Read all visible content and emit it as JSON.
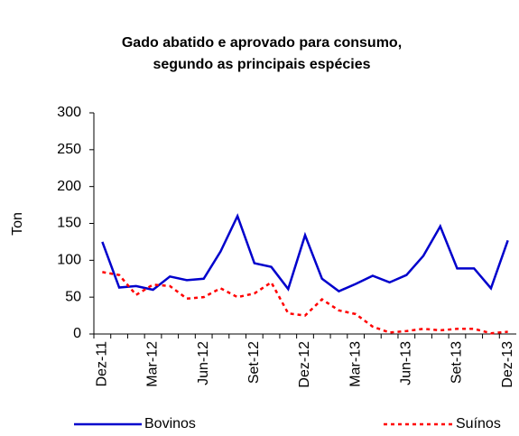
{
  "chart_data": {
    "type": "line",
    "title": "Gado abatido e aprovado para consumo,",
    "subtitle": "segundo as principais espécies",
    "y_label": "Ton",
    "categories": [
      "Dez-11",
      null,
      null,
      "Mar-12",
      null,
      null,
      "Jun-12",
      null,
      null,
      "Set-12",
      null,
      null,
      "Dez-12",
      null,
      null,
      "Mar-13",
      null,
      null,
      "Jun-13",
      null,
      null,
      "Set-13",
      null,
      null,
      "Dez-13"
    ],
    "series": [
      {
        "name": "Bovinos",
        "color": "#0000cc",
        "dash": false,
        "values": [
          125,
          63,
          65,
          60,
          78,
          73,
          75,
          112,
          160,
          96,
          91,
          61,
          134,
          75,
          58,
          68,
          79,
          70,
          80,
          106,
          146,
          89,
          89,
          62,
          127
        ]
      },
      {
        "name": "Suínos",
        "color": "#ff0000",
        "dash": true,
        "values": [
          84,
          80,
          53,
          67,
          65,
          48,
          50,
          62,
          50,
          55,
          70,
          28,
          25,
          47,
          32,
          27,
          10,
          2,
          4,
          7,
          5,
          7,
          7,
          1,
          3
        ]
      }
    ],
    "ylim": [
      0,
      300
    ],
    "yticks": [
      0,
      50,
      100,
      150,
      200,
      250,
      300
    ]
  }
}
